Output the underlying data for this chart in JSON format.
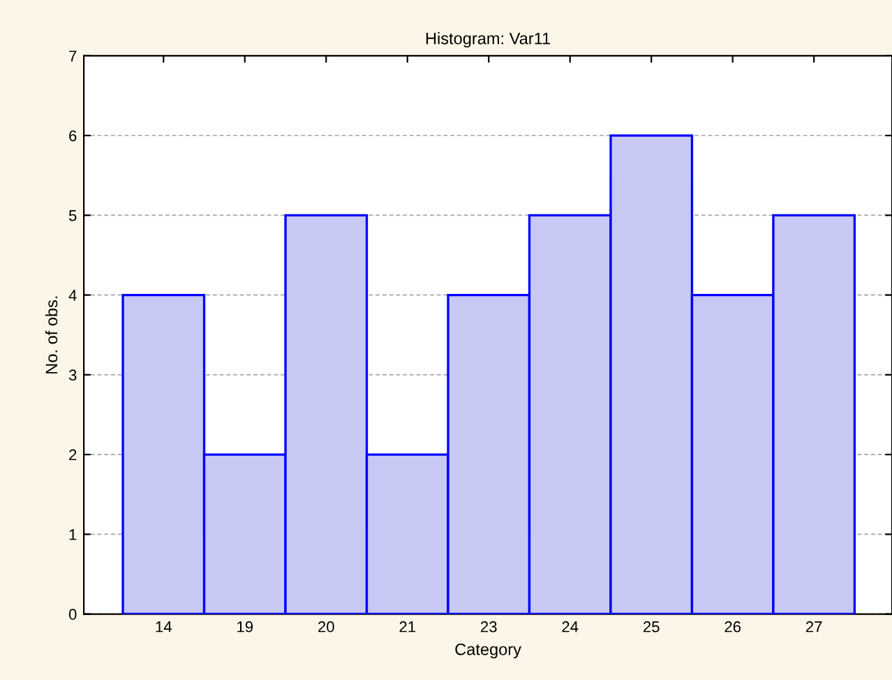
{
  "chart_data": {
    "type": "bar",
    "title": "Histogram: Var11",
    "xlabel": "Category",
    "ylabel": "No. of obs.",
    "categories": [
      "14",
      "19",
      "20",
      "21",
      "23",
      "24",
      "25",
      "26",
      "27"
    ],
    "values": [
      4,
      2,
      5,
      2,
      4,
      5,
      6,
      4,
      5
    ],
    "color": "#c8c8f4",
    "ylim": [
      0,
      7
    ],
    "yticks": [
      0,
      1,
      2,
      3,
      4,
      5,
      6,
      7
    ],
    "grid": "y"
  }
}
